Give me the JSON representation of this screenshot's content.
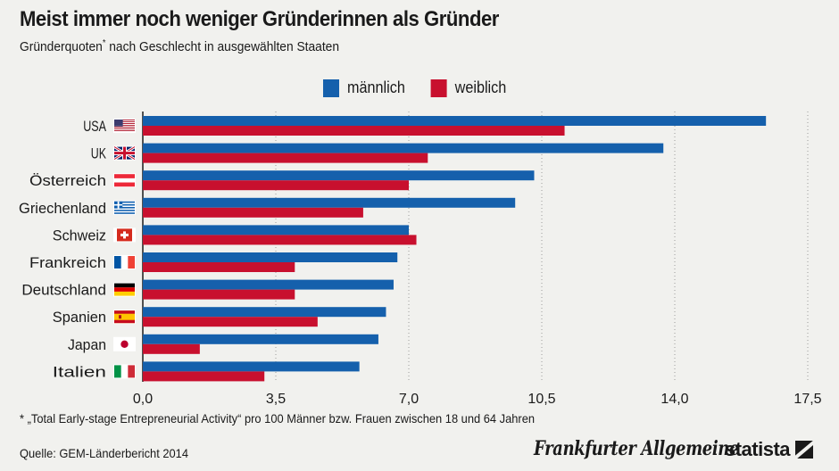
{
  "header": {
    "title": "Meist immer noch weniger Gründerinnen als Gründer",
    "subtitle_main": "Gründerquoten",
    "subtitle_marker": "*",
    "subtitle_rest": " nach Geschlecht in ausgewählten Staaten"
  },
  "legend": {
    "male_label": "männlich",
    "female_label": "weiblich"
  },
  "colors": {
    "male": "#1560ac",
    "female": "#c8102e",
    "background": "#f1f1ee",
    "grid": "#9a9a9a"
  },
  "chart_data": {
    "type": "bar",
    "orientation": "horizontal",
    "title": "Meist immer noch weniger Gründerinnen als Gründer",
    "subtitle": "Gründerquoten* nach Geschlecht in ausgewählten Staaten",
    "categories": [
      "USA",
      "UK",
      "Österreich",
      "Griechenland",
      "Schweiz",
      "Frankreich",
      "Deutschland",
      "Spanien",
      "Japan",
      "Italien"
    ],
    "flags": [
      "us-flag",
      "uk-flag",
      "austria-flag",
      "greece-flag",
      "switzerland-flag",
      "france-flag",
      "germany-flag",
      "spain-flag",
      "japan-flag",
      "italy-flag"
    ],
    "series": [
      {
        "name": "männlich",
        "color": "#1560ac",
        "values": [
          16.4,
          13.7,
          10.3,
          9.8,
          7.0,
          6.7,
          6.6,
          6.4,
          6.2,
          5.7
        ]
      },
      {
        "name": "weiblich",
        "color": "#c8102e",
        "values": [
          11.1,
          7.5,
          7.0,
          5.8,
          7.2,
          4.0,
          4.0,
          4.6,
          1.5,
          3.2
        ]
      }
    ],
    "xticks": [
      0,
      3.5,
      7.0,
      10.5,
      14.0,
      17.5
    ],
    "xtick_labels": [
      "0,0",
      "3,5",
      "7,0",
      "10,5",
      "14,0",
      "17,5"
    ],
    "xlim": [
      0,
      17.5
    ],
    "grid": true,
    "legend_position": "top-center"
  },
  "footer": {
    "footnote": "* „Total Early-stage Entrepreneurial Activity“ pro 100 Männer bzw. Frauen zwischen 18 und 64 Jahren",
    "source": "Quelle: GEM-Länderbericht 2014",
    "publisher": "Frankfurter Allgemeine",
    "brand": "statista"
  }
}
